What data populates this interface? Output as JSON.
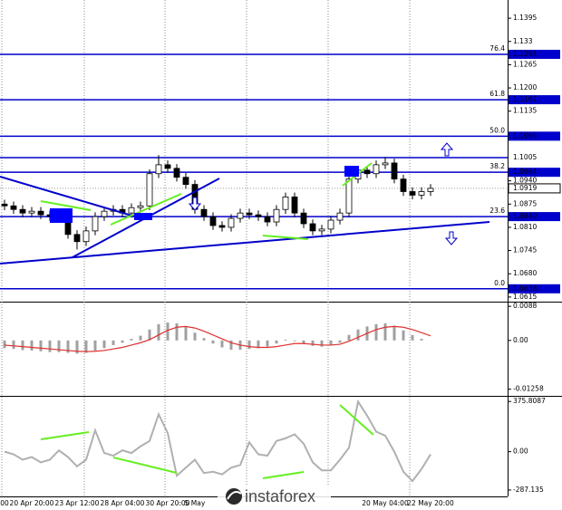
{
  "chart_data": [
    {
      "type": "candlestick",
      "categories": [
        "00",
        null,
        null,
        "20 Apr 20:00",
        null,
        null,
        null,
        null,
        "23 Apr 12:00",
        null,
        null,
        null,
        null,
        "28 Apr 04:00",
        null,
        null,
        null,
        null,
        "30 Apr 20:00",
        null,
        null,
        "5 May",
        null,
        null,
        null,
        null,
        null,
        null,
        null,
        null,
        null,
        null,
        null,
        null,
        null,
        null,
        null,
        null,
        null,
        null,
        null,
        null,
        "20 May 04:00",
        null,
        null,
        null,
        null,
        "22 May 20:00"
      ],
      "open": [
        1.0875,
        1.087,
        1.086,
        1.085,
        1.0855,
        1.0845,
        1.084,
        1.0835,
        1.079,
        1.077,
        1.08,
        1.084,
        1.0855,
        1.086,
        1.085,
        1.0865,
        1.087,
        1.096,
        1.0985,
        1.0975,
        1.095,
        1.093,
        1.086,
        1.084,
        1.0815,
        1.081,
        1.0835,
        1.085,
        1.0845,
        1.084,
        1.0825,
        1.086,
        1.0895,
        1.085,
        1.082,
        1.08,
        1.0805,
        1.083,
        1.085,
        1.0945,
        1.097,
        1.096,
        1.0985,
        1.099,
        1.0945,
        1.091,
        1.09,
        1.091
      ],
      "high": [
        1.0887,
        1.0882,
        1.0872,
        1.0867,
        1.0867,
        1.0857,
        1.0852,
        1.0847,
        1.0802,
        1.0812,
        1.0852,
        1.0867,
        1.0872,
        1.0872,
        1.0877,
        1.0882,
        1.0972,
        1.1012,
        1.0997,
        1.0987,
        1.0962,
        1.0942,
        1.0872,
        1.0852,
        1.0827,
        1.0847,
        1.0862,
        1.0862,
        1.0857,
        1.0852,
        1.0872,
        1.0907,
        1.0907,
        1.0862,
        1.0832,
        1.0817,
        1.0842,
        1.0862,
        1.0957,
        1.0982,
        1.0982,
        1.0997,
        1.1007,
        1.1002,
        1.0957,
        1.0922,
        1.0922,
        1.0931
      ],
      "low": [
        1.0858,
        1.0848,
        1.0838,
        1.0838,
        1.0833,
        1.0828,
        1.0823,
        1.0778,
        1.0748,
        1.0758,
        1.0788,
        1.0828,
        1.0843,
        1.0838,
        1.0838,
        1.0853,
        1.0858,
        1.0948,
        1.0963,
        1.0938,
        1.0918,
        1.0848,
        1.0828,
        1.0803,
        1.0798,
        1.0798,
        1.0823,
        1.0833,
        1.0828,
        1.0813,
        1.0813,
        1.0848,
        1.0838,
        1.0808,
        1.0788,
        1.0788,
        1.0793,
        1.0818,
        1.0838,
        1.0933,
        1.0948,
        1.0948,
        1.0973,
        1.0933,
        1.0898,
        1.0888,
        1.0888,
        1.0898
      ],
      "close": [
        1.087,
        1.086,
        1.085,
        1.0855,
        1.0845,
        1.084,
        1.0835,
        1.079,
        1.077,
        1.08,
        1.084,
        1.0855,
        1.086,
        1.085,
        1.0865,
        1.087,
        1.096,
        1.0985,
        1.0975,
        1.095,
        1.093,
        1.086,
        1.084,
        1.0815,
        1.081,
        1.0835,
        1.085,
        1.0845,
        1.084,
        1.0825,
        1.086,
        1.0895,
        1.085,
        1.082,
        1.08,
        1.0805,
        1.083,
        1.085,
        1.0945,
        1.097,
        1.096,
        1.0985,
        1.099,
        1.0945,
        1.091,
        1.09,
        1.091,
        1.0919
      ],
      "up_color": "#ffffff",
      "down_color": "#000000",
      "outline_color": "#000000",
      "ylim": [
        1.0602,
        1.1446
      ],
      "yticks": [
        1.1395,
        1.133,
        1.1265,
        {
          "value": 1.12,
          "label": "1.1200"
        },
        1.1135,
        {
          "value": 1.094,
          "label": "1.0940"
        },
        1.0875,
        {
          "value": 1.081,
          "label": "1.0810"
        },
        1.0745,
        {
          "value": 1.068,
          "label": "1.0680"
        },
        1.0615
      ],
      "levels": [
        {
          "value": 1.1294,
          "label": "1.1294",
          "fib": "76.4",
          "boxed": true
        },
        {
          "value": 1.1167,
          "label": "1.1167",
          "fib": "61.8",
          "boxed": true
        },
        {
          "value": 1.1065,
          "label": "1.1065",
          "fib": "50.0",
          "boxed": true
        },
        {
          "value": 1.1005,
          "label": "1.1005",
          "boxed": false
        },
        {
          "value": 1.0964,
          "label": "1.0964",
          "fib": "38.2",
          "boxed": true
        },
        {
          "value": 1.084,
          "label": "1.0840",
          "fib": "23.6",
          "boxed": true
        },
        {
          "value": 1.0638,
          "label": "1.0638",
          "fib": "0.0",
          "boxed": true
        }
      ],
      "level_color": "#0000cc",
      "last_price": 1.0919
    },
    {
      "type": "macd",
      "histogram": [
        -0.002,
        -0.0022,
        -0.0025,
        -0.0026,
        -0.0028,
        -0.003,
        -0.003,
        -0.0032,
        -0.0034,
        -0.0032,
        -0.0026,
        -0.002,
        -0.0012,
        -0.0006,
        0.0004,
        0.0012,
        0.0028,
        0.0042,
        0.0046,
        0.0044,
        0.0036,
        0.002,
        0.0006,
        -0.0008,
        -0.0018,
        -0.0024,
        -0.0024,
        -0.0022,
        -0.002,
        -0.0016,
        -0.0008,
        0.0002,
        -0.0002,
        -0.0008,
        -0.0014,
        -0.0016,
        -0.0012,
        -0.0006,
        0.0014,
        0.0028,
        0.0036,
        0.0042,
        0.0044,
        0.0038,
        0.0026,
        0.0014,
        0.0004,
        0
      ],
      "signal": [
        -0.0012,
        -0.0014,
        -0.0016,
        -0.0018,
        -0.002,
        -0.0022,
        -0.0024,
        -0.0026,
        -0.0028,
        -0.0029,
        -0.0028,
        -0.0026,
        -0.0022,
        -0.0018,
        -0.0012,
        -0.0006,
        0.0002,
        0.0014,
        0.0026,
        0.0034,
        0.0036,
        0.0032,
        0.0024,
        0.0014,
        0.0004,
        -0.0006,
        -0.0012,
        -0.0016,
        -0.0018,
        -0.0018,
        -0.0016,
        -0.0012,
        -0.0008,
        -0.0008,
        -0.001,
        -0.0012,
        -0.0012,
        -0.001,
        -0.0002,
        0.0008,
        0.0018,
        0.0028,
        0.0034,
        0.0036,
        0.0034,
        0.0028,
        0.002,
        0.0012
      ],
      "histogram_color": "#a0a0a0",
      "signal_color": "#e03030",
      "ylim": [
        -0.0143,
        0.01
      ],
      "yticks": [
        0.0088,
        {
          "value": 0,
          "label": "0.00"
        },
        -0.01258
      ]
    },
    {
      "type": "line",
      "values": [
        0,
        -20,
        -60,
        -40,
        -80,
        -60,
        10,
        -40,
        -110,
        -60,
        160,
        -10,
        -30,
        10,
        -10,
        40,
        80,
        280,
        140,
        -180,
        -120,
        -60,
        -160,
        -150,
        -170,
        -120,
        -100,
        70,
        -20,
        -30,
        80,
        100,
        130,
        60,
        -80,
        -140,
        -140,
        -60,
        30,
        375,
        270,
        150,
        120,
        0,
        -150,
        -220,
        -130,
        -20
      ],
      "color": "#b0b0b0",
      "ylim": [
        -335,
        418
      ],
      "yticks": [
        375.8087,
        {
          "value": 0,
          "label": "0.00"
        },
        -287.135
      ]
    }
  ],
  "watermark": "instaforex"
}
